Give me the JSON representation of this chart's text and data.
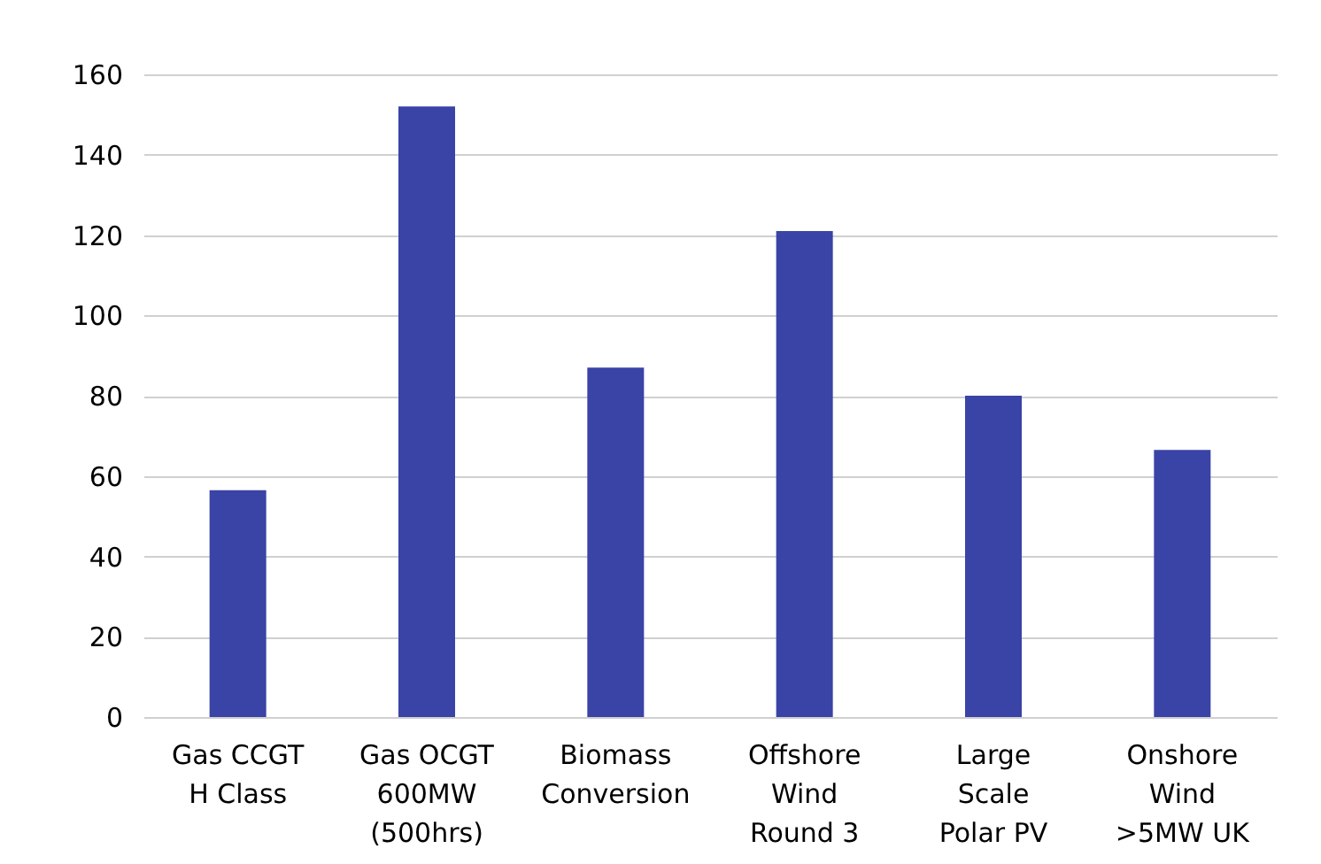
{
  "chart_data": {
    "type": "bar",
    "categories": [
      "Gas CCGT\nH Class",
      "Gas OCGT\n600MW\n(500hrs)",
      "Biomass\nConversion",
      "Offshore\nWind\nRound 3",
      "Large\nScale\nPolar PV",
      "Onshore\nWind\n>5MW UK"
    ],
    "values": [
      56.5,
      152,
      87,
      121,
      80,
      66.5
    ],
    "color": "#3a43a6",
    "ylim": [
      0,
      160
    ],
    "yticks": [
      0,
      20,
      40,
      60,
      80,
      100,
      120,
      140,
      160
    ],
    "grid": "y"
  }
}
